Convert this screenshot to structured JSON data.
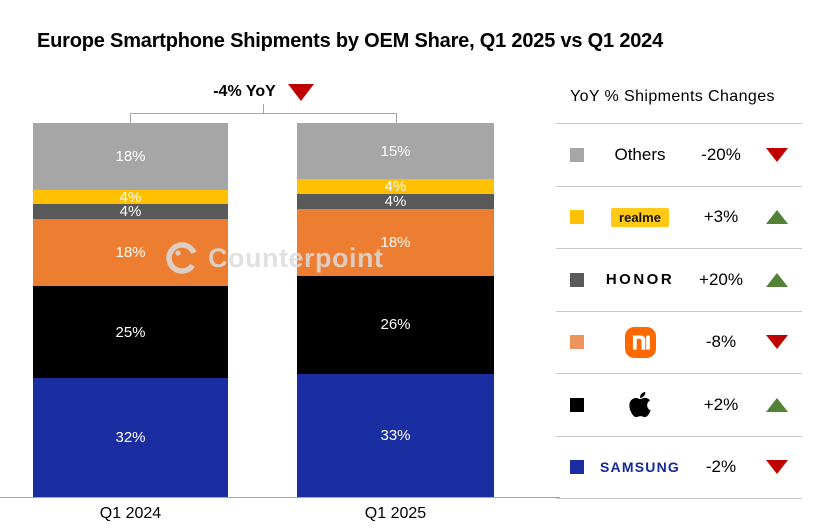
{
  "title": "Europe Smartphone Shipments by OEM Share, Q1 2025 vs Q1 2024",
  "watermark": "Counterpoint",
  "legend": {
    "title": "YoY % Shipments Changes"
  },
  "colors": {
    "up_green": "#538135",
    "down_red": "#C00000",
    "axis_gray": "#A6A6A6",
    "separator_gray": "#C9C9C9",
    "xiaomi_logo_orange": "#FF6900",
    "realme_badge_yellow": "#FFC915",
    "samsung_blue": "#1428A0"
  },
  "chart_data": {
    "type": "bar",
    "subtype": "stacked-percent-share",
    "title": "Europe Smartphone Shipments by OEM Share, Q1 2025 vs Q1 2024",
    "categories": [
      "Q1 2024",
      "Q1 2025"
    ],
    "annotation": {
      "label": "-4% YoY",
      "direction": "down"
    },
    "legend_title": "YoY % Shipments Changes",
    "stack_order": "top-to-bottom as listed",
    "value_suffix": "%",
    "ylim": [
      0,
      100
    ],
    "grid": false,
    "legend_position": "right",
    "series": [
      {
        "name": "Others",
        "display": "Others",
        "color": "#A6A6A6",
        "values": [
          18,
          15
        ],
        "change": "-20%",
        "direction": "down"
      },
      {
        "name": "realme",
        "display": "realme",
        "color": "#FFC000",
        "values": [
          4,
          4
        ],
        "change": "+3%",
        "direction": "up"
      },
      {
        "name": "HONOR",
        "display": "HONOR",
        "color": "#595959",
        "values": [
          4,
          4
        ],
        "change": "+20%",
        "direction": "up"
      },
      {
        "name": "Xiaomi",
        "display": "Xiaomi",
        "color": "#ED7D31",
        "swatch": "#F0945F",
        "values": [
          18,
          18
        ],
        "change": "-8%",
        "direction": "down"
      },
      {
        "name": "Apple",
        "display": "Apple",
        "color": "#000000",
        "values": [
          25,
          26
        ],
        "change": "+2%",
        "direction": "up"
      },
      {
        "name": "Samsung",
        "display": "SAMSUNG",
        "color": "#1B2EA1",
        "values": [
          32,
          33
        ],
        "change": "-2%",
        "direction": "down"
      }
    ]
  }
}
